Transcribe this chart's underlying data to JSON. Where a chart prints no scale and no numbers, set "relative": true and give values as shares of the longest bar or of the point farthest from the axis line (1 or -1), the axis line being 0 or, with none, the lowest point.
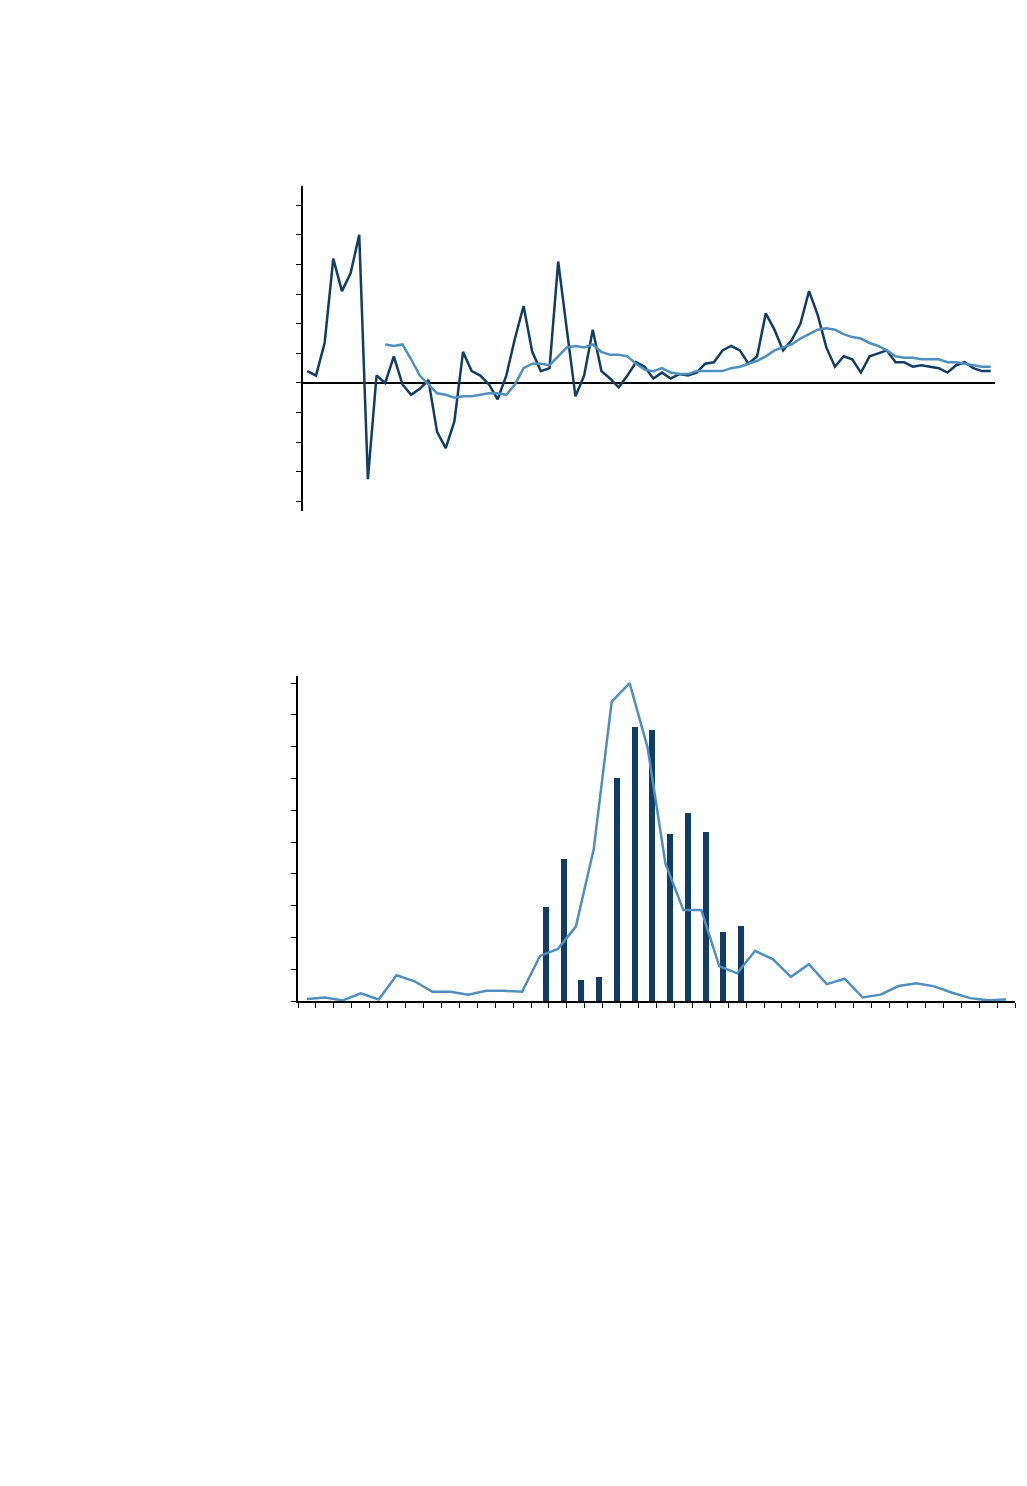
{
  "chart_data": [
    {
      "type": "line",
      "relative": true,
      "categories": [
        null,
        null,
        null,
        null,
        null,
        null,
        null,
        null,
        null,
        null,
        null,
        null,
        null,
        null,
        null,
        null,
        null,
        null,
        null,
        null,
        null,
        null,
        null,
        null,
        null,
        null,
        null,
        null,
        null,
        null,
        null,
        null,
        null,
        null,
        null,
        null,
        null,
        null,
        null,
        null,
        null,
        null,
        null,
        null,
        null,
        null,
        null,
        null,
        null,
        null,
        null,
        null,
        null,
        null,
        null,
        null,
        null,
        null,
        null,
        null,
        null,
        null,
        null,
        null,
        null,
        null,
        null,
        null,
        null,
        null,
        null,
        null,
        null,
        null,
        null,
        null,
        null,
        null,
        null,
        null
      ],
      "series": [
        {
          "color": "#0f3d66",
          "values": [
            0.08,
            0.05,
            0.27,
            0.84,
            0.62,
            0.74,
            1.0,
            -0.65,
            0.05,
            0.0,
            0.18,
            -0.01,
            -0.08,
            -0.04,
            0.02,
            -0.33,
            -0.44,
            -0.26,
            0.21,
            0.08,
            0.05,
            -0.01,
            -0.11,
            0.05,
            0.3,
            0.52,
            0.21,
            0.08,
            0.1,
            0.82,
            0.36,
            -0.09,
            0.05,
            0.36,
            0.08,
            0.03,
            -0.03,
            0.05,
            0.14,
            0.11,
            0.03,
            0.07,
            0.03,
            0.06,
            0.05,
            0.07,
            0.13,
            0.14,
            0.22,
            0.25,
            0.22,
            0.13,
            0.18,
            0.47,
            0.36,
            0.22,
            0.29,
            0.4,
            0.62,
            0.46,
            0.24,
            0.11,
            0.18,
            0.16,
            0.07,
            0.18,
            0.2,
            0.22,
            0.14,
            0.14,
            0.11,
            0.12,
            0.11,
            0.1,
            0.07,
            0.12,
            0.14,
            0.1,
            0.08,
            0.08
          ]
        },
        {
          "color": "#4f8fc0",
          "values": [
            null,
            null,
            null,
            null,
            null,
            null,
            null,
            null,
            null,
            0.26,
            0.25,
            0.26,
            0.16,
            0.05,
            -0.01,
            -0.07,
            -0.08,
            -0.1,
            -0.09,
            -0.09,
            -0.08,
            -0.07,
            -0.07,
            -0.08,
            -0.01,
            0.1,
            0.13,
            0.13,
            0.12,
            0.18,
            0.24,
            0.25,
            0.24,
            0.26,
            0.21,
            0.19,
            0.19,
            0.18,
            0.13,
            0.09,
            0.08,
            0.1,
            0.07,
            0.06,
            0.06,
            0.08,
            0.08,
            0.08,
            0.08,
            0.1,
            0.11,
            0.13,
            0.15,
            0.18,
            0.22,
            0.24,
            0.26,
            0.3,
            0.33,
            0.36,
            0.37,
            0.36,
            0.33,
            0.31,
            0.3,
            0.27,
            0.25,
            0.22,
            0.18,
            0.17,
            0.17,
            0.16,
            0.16,
            0.16,
            0.14,
            0.14,
            0.13,
            0.12,
            0.11,
            0.11
          ]
        }
      ]
    },
    {
      "type": "bar",
      "relative": true,
      "categories": [
        null,
        null,
        null,
        null,
        null,
        null,
        null,
        null,
        null,
        null,
        null,
        null
      ],
      "series": [
        {
          "color": "#0f3d66",
          "values": [
            0.342,
            0.519,
            0.078,
            0.088,
            0.814,
            1.0,
            0.991,
            0.611,
            0.686,
            0.616,
            0.253,
            0.274
          ]
        }
      ]
    },
    {
      "type": "line",
      "relative": true,
      "categories": [
        null,
        null,
        null,
        null,
        null,
        null,
        null,
        null,
        null,
        null,
        null,
        null,
        null,
        null,
        null,
        null,
        null,
        null,
        null,
        null,
        null,
        null,
        null,
        null,
        null,
        null,
        null,
        null,
        null,
        null,
        null,
        null,
        null,
        null,
        null,
        null,
        null,
        null,
        null,
        null
      ],
      "series": [
        {
          "color": "#4f8fc0",
          "values": [
            0.006,
            0.011,
            0.002,
            0.024,
            0.005,
            0.081,
            0.062,
            0.029,
            0.029,
            0.02,
            0.032,
            0.032,
            0.029,
            0.142,
            0.164,
            0.234,
            0.478,
            0.942,
            1.0,
            0.798,
            0.432,
            0.286,
            0.286,
            0.11,
            0.087,
            0.158,
            0.131,
            0.076,
            0.116,
            0.053,
            0.07,
            0.011,
            0.02,
            0.047,
            0.056,
            0.046,
            0.026,
            0.009,
            0.002,
            0.005
          ]
        }
      ]
    }
  ]
}
